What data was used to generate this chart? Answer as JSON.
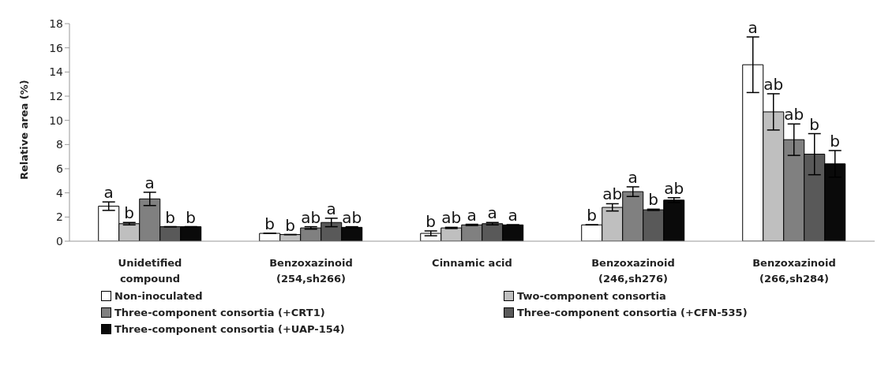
{
  "chart_data": {
    "type": "bar",
    "ylabel": "Relative area (%)",
    "categories": [
      "Unidetified compound",
      "Benzoxazinoid (254,sh266)",
      "Cinnamic acid",
      "Benzoxazinoid (246,sh276)",
      "Benzoxazinoid (266,sh284)"
    ],
    "series": [
      {
        "name": "Non-inoculated",
        "color": "#ffffff",
        "values": [
          2.9,
          0.65,
          0.65,
          1.35,
          14.6
        ],
        "errors": [
          0.35,
          null,
          0.2,
          null,
          2.3
        ],
        "value_labels": [
          "a",
          "b",
          "b",
          "b",
          "a"
        ]
      },
      {
        "name": "Two-component consortia",
        "color": "#bfbfbf",
        "values": [
          1.45,
          0.55,
          1.1,
          2.8,
          10.7
        ],
        "errors": [
          0.1,
          null,
          0.05,
          0.3,
          1.5
        ],
        "value_labels": [
          "b",
          "b",
          "ab",
          "ab",
          "ab"
        ]
      },
      {
        "name": "Three-component consortia (+CRT1)",
        "color": "#808080",
        "values": [
          3.5,
          1.1,
          1.35,
          4.1,
          8.4
        ],
        "errors": [
          0.55,
          0.1,
          0.05,
          0.4,
          1.3
        ],
        "value_labels": [
          "a",
          "ab",
          "a",
          "a",
          "ab"
        ]
      },
      {
        "name": "Three-component consortia (+CFN-535)",
        "color": "#595959",
        "values": [
          1.2,
          1.55,
          1.45,
          2.6,
          7.2
        ],
        "errors": [
          null,
          0.35,
          0.1,
          0.05,
          1.7
        ],
        "value_labels": [
          "b",
          "a",
          "a",
          "b",
          "b"
        ]
      },
      {
        "name": "Three-component consortia (+UAP-154)",
        "color": "#0a0a0a",
        "values": [
          1.2,
          1.15,
          1.35,
          3.4,
          6.4
        ],
        "errors": [
          null,
          0.05,
          null,
          0.2,
          1.1
        ],
        "value_labels": [
          "b",
          "ab",
          "a",
          "ab",
          "b"
        ]
      }
    ],
    "ylim": [
      0,
      18
    ],
    "yticks": [
      0,
      2,
      4,
      6,
      8,
      10,
      12,
      14,
      16,
      18
    ],
    "legend": "bottom"
  }
}
